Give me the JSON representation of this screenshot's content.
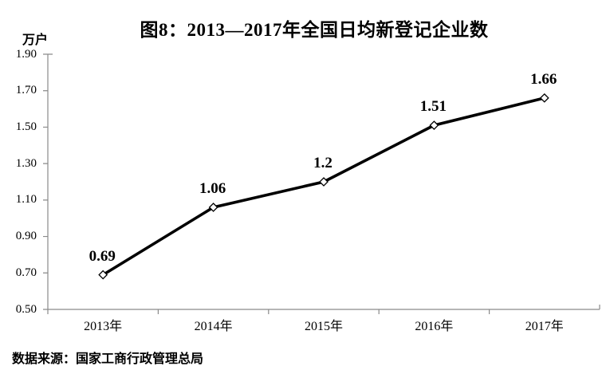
{
  "title": "图8：2013—2017年全国日均新登记企业数",
  "source": "数据来源：国家工商行政管理总局",
  "chart_data": {
    "type": "line",
    "title": "图8：2013—2017年全国日均新登记企业数",
    "ylabel": "万户",
    "xlabel": "",
    "categories": [
      "2013年",
      "2014年",
      "2015年",
      "2016年",
      "2017年"
    ],
    "values": [
      0.69,
      1.06,
      1.2,
      1.51,
      1.66
    ],
    "data_labels": [
      "0.69",
      "1.06",
      "1.2",
      "1.51",
      "1.66"
    ],
    "ylim": [
      0.5,
      1.9
    ],
    "ytick_step": 0.2,
    "yticks": [
      "1.90",
      "1.70",
      "1.50",
      "1.30",
      "1.10",
      "0.90",
      "0.70",
      "0.50"
    ],
    "grid": false,
    "legend": "none",
    "line_color": "#000000",
    "marker": "white-diamond",
    "axis_color": "#8a8a8a"
  }
}
